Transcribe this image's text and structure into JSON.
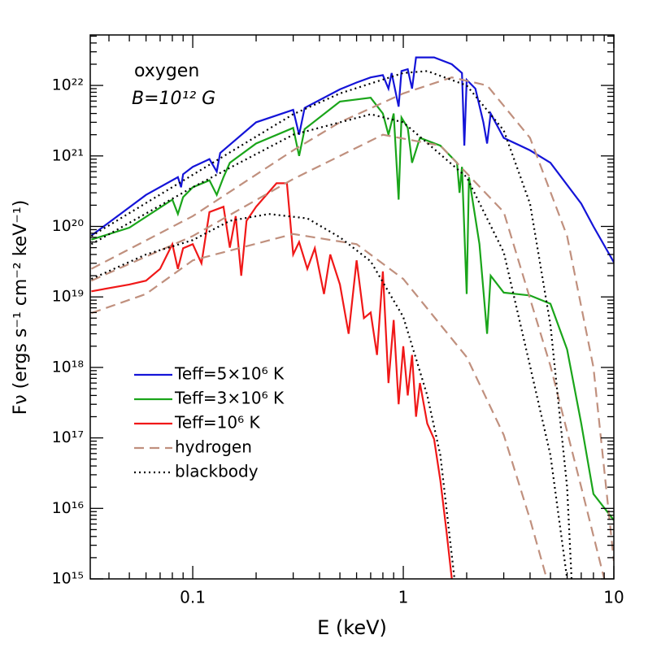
{
  "chart_data": {
    "type": "line",
    "annotations": [
      "oxygen",
      "B=10¹² G"
    ],
    "xlabel": "E (keV)",
    "ylabel": "Fν (ergs s⁻¹ cm⁻² keV⁻¹)",
    "xscale": "log",
    "yscale": "log",
    "xlim": [
      0.0326,
      10
    ],
    "ylim": [
      1000000000000000.0,
      5.2e+22
    ],
    "xticks": [
      0.1,
      1,
      10
    ],
    "xminorticks": [
      0.04,
      0.05,
      0.06,
      0.07,
      0.08,
      0.09,
      0.2,
      0.3,
      0.4,
      0.5,
      0.6,
      0.7,
      0.8,
      0.9,
      2,
      3,
      4,
      5,
      6,
      7,
      8,
      9
    ],
    "yticks": [
      {
        "value": 1000000000000000.0,
        "label": "10¹⁵"
      },
      {
        "value": 1e+16,
        "label": "10¹⁶"
      },
      {
        "value": 1e+17,
        "label": "10¹⁷"
      },
      {
        "value": 1e+18,
        "label": "10¹⁸"
      },
      {
        "value": 1e+19,
        "label": "10¹⁹"
      },
      {
        "value": 1e+20,
        "label": "10²⁰"
      },
      {
        "value": 1e+21,
        "label": "10²¹"
      },
      {
        "value": 1e+22,
        "label": "10²²"
      }
    ],
    "yminorticks": [
      2000000000000000.0,
      3000000000000000.0,
      4000000000000000.0,
      5000000000000000.0,
      6000000000000000.0,
      7000000000000000.0,
      8000000000000000.0,
      9000000000000000.0,
      2e+16,
      3e+16,
      4e+16,
      5e+16,
      6e+16,
      7e+16,
      8e+16,
      9e+16,
      2e+17,
      3e+17,
      4e+17,
      5e+17,
      6e+17,
      7e+17,
      8e+17,
      9e+17,
      2e+18,
      3e+18,
      4e+18,
      5e+18,
      6e+18,
      7e+18,
      8e+18,
      9e+18,
      2e+19,
      3e+19,
      4e+19,
      5e+19,
      6e+19,
      7e+19,
      8e+19,
      9e+19,
      2e+20,
      3e+20,
      4e+20,
      5e+20,
      6e+20,
      7e+20,
      8e+20,
      9e+20,
      2e+21,
      3e+21,
      4e+21,
      5e+21,
      6e+21,
      7e+21,
      8e+21,
      9e+21,
      2e+22,
      3e+22,
      4e+22,
      5e+22
    ],
    "legend": "lower-left",
    "series": [
      {
        "name": "Teff=5×10⁶ K",
        "color": "#1414d8",
        "dash": "solid",
        "x": [
          0.033,
          0.06,
          0.085,
          0.088,
          0.09,
          0.1,
          0.12,
          0.13,
          0.135,
          0.2,
          0.3,
          0.32,
          0.34,
          0.5,
          0.6,
          0.7,
          0.8,
          0.85,
          0.88,
          0.95,
          0.98,
          1.05,
          1.1,
          1.15,
          1.4,
          1.7,
          1.9,
          1.95,
          2.0,
          2.2,
          2.4,
          2.5,
          2.6,
          3,
          4,
          5,
          7,
          8,
          10
        ],
        "values": [
          7.4e+19,
          2.8e+20,
          5e+20,
          3.6e+20,
          5.5e+20,
          7e+20,
          9e+20,
          6e+20,
          1.1e+21,
          3e+21,
          4.5e+21,
          2e+21,
          4.8e+21,
          8.8e+21,
          1.1e+22,
          1.3e+22,
          1.4e+22,
          9e+21,
          1.5e+22,
          5e+21,
          1.6e+22,
          1.7e+22,
          9e+21,
          2.5e+22,
          2.5e+22,
          2e+22,
          1.5e+22,
          1.4e+21,
          1.2e+22,
          9e+21,
          3e+21,
          1.5e+21,
          4e+21,
          1.8e+21,
          1.2e+21,
          8e+20,
          2.1e+20,
          1e+20,
          3.1e+19
        ]
      },
      {
        "name": "Teff=3×10⁶ K",
        "color": "#1aa51a",
        "dash": "solid",
        "x": [
          0.033,
          0.05,
          0.08,
          0.085,
          0.09,
          0.1,
          0.12,
          0.13,
          0.14,
          0.15,
          0.2,
          0.3,
          0.32,
          0.34,
          0.5,
          0.7,
          0.8,
          0.85,
          0.9,
          0.95,
          0.98,
          1.05,
          1.1,
          1.2,
          1.5,
          1.8,
          1.85,
          1.9,
          2.0,
          2.05,
          2.3,
          2.5,
          2.6,
          3,
          4,
          5,
          6,
          7,
          8,
          10
        ],
        "values": [
          6.5e+19,
          9.6e+19,
          2.4e+20,
          1.5e+20,
          2.6e+20,
          3.6e+20,
          4.5e+20,
          2.8e+20,
          5e+20,
          8e+20,
          1.5e+21,
          2.5e+21,
          1e+21,
          2.4e+21,
          5.9e+21,
          6.7e+21,
          4e+21,
          2e+21,
          4e+21,
          2.4e+20,
          3.5e+21,
          2.5e+21,
          8e+20,
          1.8e+21,
          1.4e+21,
          8e+20,
          3e+20,
          7e+20,
          1.1e+19,
          5e+20,
          5.6e+19,
          3e+18,
          2e+19,
          1.15e+19,
          1.05e+19,
          8e+18,
          1.8e+18,
          1.6e+17,
          1.6e+16,
          6800000000000000.0
        ]
      },
      {
        "name": "Teff=10⁶ K",
        "color": "#f01818",
        "dash": "solid",
        "x": [
          0.033,
          0.05,
          0.06,
          0.07,
          0.08,
          0.085,
          0.09,
          0.1,
          0.11,
          0.12,
          0.14,
          0.15,
          0.16,
          0.17,
          0.18,
          0.2,
          0.25,
          0.28,
          0.3,
          0.32,
          0.35,
          0.38,
          0.42,
          0.45,
          0.5,
          0.55,
          0.6,
          0.65,
          0.7,
          0.75,
          0.8,
          0.85,
          0.9,
          0.95,
          1.0,
          1.05,
          1.1,
          1.15,
          1.2,
          1.3,
          1.4,
          1.5,
          1.6,
          1.7
        ],
        "values": [
          1.2e+19,
          1.5e+19,
          1.7e+19,
          2.5e+19,
          5.6e+19,
          2.5e+19,
          4.9e+19,
          5.6e+19,
          3e+19,
          1.6e+20,
          1.9e+20,
          5e+19,
          1.4e+20,
          2e+19,
          1.2e+20,
          1.9e+20,
          4.1e+20,
          4.1e+20,
          4e+19,
          6e+19,
          2.5e+19,
          4.9e+19,
          1.1e+19,
          4e+19,
          1.5e+19,
          3e+18,
          3.3e+19,
          5e+18,
          6e+18,
          1.5e+18,
          2.3e+19,
          6e+17,
          4.7e+18,
          3e+17,
          2e+18,
          4e+17,
          1.5e+18,
          2e+17,
          6e+17,
          1.6e+17,
          9.6e+16,
          2.5e+16,
          5000000000000000.0,
          1000000000000000.0
        ]
      },
      {
        "name": "hydrogen",
        "color": "#c0907e",
        "dash": "dashed",
        "lines": [
          {
            "x": [
              0.033,
              0.1,
              0.3,
              0.5,
              1,
              1.7,
              2.5,
              4,
              6,
              8,
              10
            ],
            "values": [
              2.5e+19,
              1.4e+20,
              1.2e+21,
              3e+21,
              7.7e+21,
              1.3e+22,
              1e+22,
              1.8e+21,
              7.3e+19,
              1e+18,
              1800000000000000.0
            ]
          },
          {
            "x": [
              0.033,
              0.1,
              0.3,
              0.8,
              1.5,
              3,
              5,
              7,
              9
            ],
            "values": [
              1.7e+19,
              7.3e+19,
              4.7e+20,
              2e+21,
              1.4e+21,
              1.6e+20,
              1.05e+18,
              2e+16,
              1000000000000000.0
            ]
          },
          {
            "x": [
              0.033,
              0.06,
              0.1,
              0.3,
              0.6,
              1,
              2,
              3,
              4,
              4.8
            ],
            "values": [
              5.9e+18,
              1.1e+19,
              3.3e+19,
              7.8e+19,
              5.6e+19,
              1.8e+19,
              1.4e+18,
              1.1e+17,
              7000000000000000.0,
              1000000000000000.0
            ]
          }
        ]
      },
      {
        "name": "blackbody",
        "color": "#000000",
        "dash": "dotted",
        "lines": [
          {
            "x": [
              0.033,
              0.1,
              0.3,
              0.5,
              1,
              1.3,
              2,
              3,
              4,
              5,
              6,
              6.3
            ],
            "values": [
              7.3e+19,
              5.4e+20,
              3.9e+21,
              7.7e+21,
              1.5e+22,
              1.6e+22,
              1e+22,
              2.3e+21,
              2.1e+20,
              4e+18,
              2e+16,
              1000000000000000.0
            ]
          },
          {
            "x": [
              0.033,
              0.1,
              0.3,
              0.7,
              1,
              2,
              3,
              4,
              5,
              6
            ],
            "values": [
              5.6e+19,
              3.6e+20,
              2e+21,
              3.9e+21,
              3e+21,
              5e+20,
              4.3e+19,
              1.05e+18,
              5.7e+16,
              1000000000000000.0
            ]
          },
          {
            "x": [
              0.033,
              0.06,
              0.1,
              0.15,
              0.23,
              0.35,
              0.5,
              0.7,
              1,
              1.3,
              1.5,
              1.75
            ],
            "values": [
              1.8e+19,
              4e+19,
              6.4e+19,
              1.2e+20,
              1.5e+20,
              1.3e+20,
              7e+19,
              3.2e+19,
              5.2e+18,
              4e+17,
              5.7e+16,
              1000000000000000.0
            ]
          }
        ]
      }
    ]
  }
}
